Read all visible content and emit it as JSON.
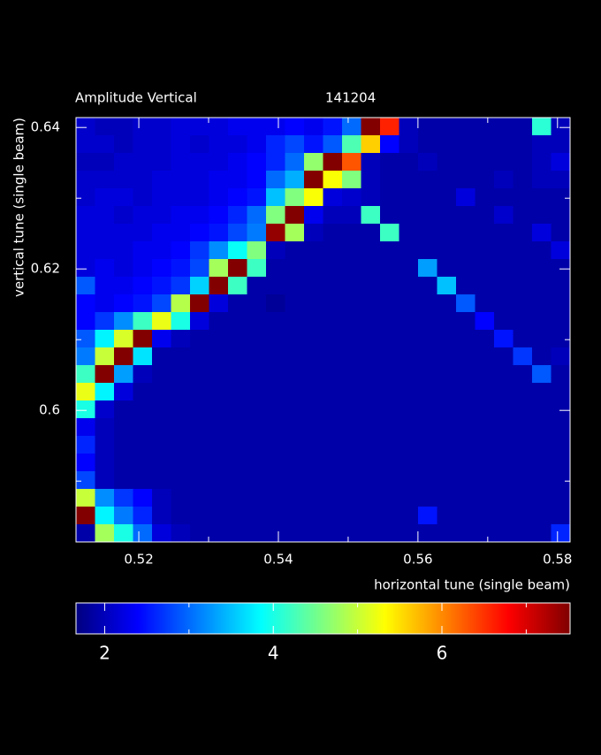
{
  "chart_data": {
    "type": "heatmap",
    "title": "Amplitude Vertical",
    "subtitle": "141204",
    "x_label": "horizontal tune (single beam)",
    "y_label": "vertical tune (single beam)",
    "xlim": [
      0.511,
      0.5818
    ],
    "ylim": [
      0.5814,
      0.6414
    ],
    "xticks": [
      0.52,
      0.54,
      0.56,
      0.58
    ],
    "xminor": [
      0.53,
      0.55,
      0.57
    ],
    "yticks": [
      0.6,
      0.62,
      0.64
    ],
    "yminor": [
      0.59,
      0.61,
      0.63
    ],
    "colormap": "jet",
    "zlim": [
      1.66,
      7.52
    ],
    "zticks": [
      2,
      4,
      6
    ],
    "zminor": [
      3,
      5,
      7
    ],
    "z": [
      [
        2.1,
        2.0,
        2.0,
        2.1,
        2.1,
        2.2,
        2.2,
        2.2,
        2.3,
        2.3,
        2.3,
        2.4,
        2.3,
        2.5,
        3.0,
        7.5,
        6.6,
        2.0,
        1.9,
        1.9,
        1.9,
        1.9,
        1.9,
        1.9,
        4.1,
        2.0
      ],
      [
        2.1,
        2.1,
        2.0,
        2.1,
        2.1,
        2.2,
        2.1,
        2.2,
        2.2,
        2.3,
        2.6,
        2.8,
        2.5,
        2.9,
        4.3,
        5.6,
        2.4,
        2.0,
        1.9,
        1.9,
        1.9,
        1.9,
        1.9,
        1.9,
        2.0,
        2.0
      ],
      [
        2.0,
        2.0,
        2.1,
        2.1,
        2.1,
        2.2,
        2.2,
        2.2,
        2.3,
        2.4,
        2.6,
        3.0,
        4.7,
        7.5,
        6.3,
        2.0,
        1.9,
        1.9,
        2.0,
        1.9,
        1.9,
        1.9,
        1.9,
        1.9,
        2.0,
        2.2
      ],
      [
        2.1,
        2.1,
        2.1,
        2.1,
        2.2,
        2.2,
        2.2,
        2.3,
        2.3,
        2.4,
        3.0,
        3.4,
        7.5,
        5.3,
        4.6,
        2.0,
        1.9,
        1.9,
        1.9,
        1.9,
        1.9,
        1.9,
        2.0,
        1.9,
        2.0,
        2.0
      ],
      [
        2.1,
        2.2,
        2.2,
        2.1,
        2.2,
        2.2,
        2.2,
        2.3,
        2.4,
        2.5,
        3.5,
        4.6,
        5.3,
        2.2,
        2.1,
        2.0,
        1.9,
        1.9,
        1.9,
        1.9,
        2.2,
        1.9,
        1.9,
        1.9,
        1.9,
        1.9
      ],
      [
        2.2,
        2.2,
        2.1,
        2.2,
        2.2,
        2.3,
        2.3,
        2.4,
        2.6,
        3.0,
        4.6,
        7.5,
        2.3,
        2.0,
        2.0,
        4.2,
        1.9,
        1.9,
        1.9,
        1.9,
        1.9,
        1.9,
        2.1,
        1.9,
        1.9,
        1.9
      ],
      [
        2.2,
        2.2,
        2.2,
        2.2,
        2.3,
        2.3,
        2.4,
        2.5,
        2.8,
        3.1,
        7.4,
        4.8,
        2.0,
        1.9,
        1.9,
        1.9,
        4.2,
        1.9,
        1.9,
        1.9,
        1.9,
        1.9,
        1.9,
        1.9,
        2.2,
        1.9
      ],
      [
        2.2,
        2.2,
        2.2,
        2.3,
        2.3,
        2.4,
        2.7,
        3.2,
        3.9,
        4.6,
        2.0,
        1.9,
        1.9,
        1.9,
        1.9,
        1.9,
        1.9,
        1.9,
        1.9,
        1.9,
        1.9,
        1.9,
        1.9,
        1.9,
        1.9,
        2.2
      ],
      [
        2.2,
        2.3,
        2.2,
        2.3,
        2.4,
        2.5,
        2.8,
        4.8,
        7.5,
        4.2,
        1.9,
        1.9,
        1.9,
        1.9,
        1.9,
        1.9,
        1.9,
        1.9,
        3.3,
        1.9,
        1.9,
        1.9,
        1.9,
        1.9,
        1.9,
        1.9
      ],
      [
        2.9,
        2.3,
        2.3,
        2.4,
        2.5,
        2.7,
        3.6,
        7.5,
        4.2,
        1.9,
        1.9,
        1.9,
        1.9,
        1.9,
        1.9,
        1.9,
        1.9,
        1.9,
        1.9,
        3.5,
        1.9,
        1.9,
        1.9,
        1.9,
        1.9,
        1.9
      ],
      [
        2.4,
        2.3,
        2.4,
        2.5,
        2.8,
        4.9,
        7.5,
        2.2,
        1.9,
        1.9,
        1.8,
        1.9,
        1.9,
        1.9,
        1.9,
        1.9,
        1.9,
        1.9,
        1.9,
        1.9,
        2.9,
        1.9,
        1.9,
        1.9,
        1.9,
        1.9
      ],
      [
        2.4,
        2.7,
        3.2,
        4.2,
        5.2,
        4.0,
        2.2,
        1.9,
        1.9,
        1.9,
        1.9,
        1.9,
        1.9,
        1.9,
        1.9,
        1.9,
        1.9,
        1.9,
        1.9,
        1.9,
        1.9,
        2.4,
        1.9,
        1.9,
        1.9,
        1.9
      ],
      [
        2.9,
        3.8,
        5.1,
        7.5,
        2.3,
        2.0,
        1.9,
        1.9,
        1.9,
        1.9,
        1.9,
        1.9,
        1.9,
        1.9,
        1.9,
        1.9,
        1.9,
        1.9,
        1.9,
        1.9,
        1.9,
        1.9,
        2.5,
        1.9,
        1.9,
        1.9
      ],
      [
        3.1,
        5.0,
        7.5,
        3.7,
        1.9,
        1.9,
        1.9,
        1.9,
        1.9,
        1.9,
        1.9,
        1.9,
        1.9,
        1.9,
        1.9,
        1.9,
        1.9,
        1.9,
        1.9,
        1.9,
        1.9,
        1.9,
        1.9,
        2.7,
        1.9,
        2.0
      ],
      [
        4.2,
        7.5,
        3.3,
        2.0,
        1.9,
        1.9,
        1.9,
        1.9,
        1.9,
        1.9,
        1.9,
        1.9,
        1.9,
        1.9,
        1.9,
        1.9,
        1.9,
        1.9,
        1.9,
        1.9,
        1.9,
        1.9,
        1.9,
        1.9,
        2.9,
        1.9
      ],
      [
        5.2,
        3.8,
        2.2,
        1.9,
        1.9,
        1.9,
        1.9,
        1.9,
        1.9,
        1.9,
        1.9,
        1.9,
        1.9,
        1.9,
        1.9,
        1.9,
        1.9,
        1.9,
        1.9,
        1.9,
        1.9,
        1.9,
        1.9,
        1.9,
        1.9,
        1.9
      ],
      [
        4.0,
        2.1,
        1.9,
        1.9,
        1.9,
        1.9,
        1.9,
        1.9,
        1.9,
        1.9,
        1.9,
        1.9,
        1.9,
        1.9,
        1.9,
        1.9,
        1.9,
        1.9,
        1.9,
        1.9,
        1.9,
        1.9,
        1.9,
        1.9,
        1.9,
        1.9
      ],
      [
        2.3,
        2.0,
        1.9,
        1.9,
        1.9,
        1.9,
        1.9,
        1.9,
        1.9,
        1.9,
        1.9,
        1.9,
        1.9,
        1.9,
        1.9,
        1.9,
        1.9,
        1.9,
        1.9,
        1.9,
        1.9,
        1.9,
        1.9,
        1.9,
        1.9,
        1.9
      ],
      [
        2.6,
        2.0,
        1.9,
        1.9,
        1.9,
        1.9,
        1.9,
        1.9,
        1.9,
        1.9,
        1.9,
        1.9,
        1.9,
        1.9,
        1.9,
        1.9,
        1.9,
        1.9,
        1.9,
        1.9,
        1.9,
        1.9,
        1.9,
        1.9,
        1.9,
        1.9
      ],
      [
        2.4,
        2.0,
        1.9,
        1.9,
        1.9,
        1.9,
        1.9,
        1.9,
        1.9,
        1.9,
        1.9,
        1.9,
        1.9,
        1.9,
        1.9,
        1.9,
        1.9,
        1.9,
        1.9,
        1.9,
        1.9,
        1.9,
        1.9,
        1.9,
        1.9,
        1.9
      ],
      [
        2.8,
        2.0,
        1.9,
        1.9,
        1.9,
        1.9,
        1.9,
        1.9,
        1.9,
        1.9,
        1.9,
        1.9,
        1.9,
        1.9,
        1.9,
        1.9,
        1.9,
        1.9,
        1.9,
        1.9,
        1.9,
        1.9,
        1.9,
        1.9,
        1.9,
        1.9
      ],
      [
        5.0,
        3.2,
        2.7,
        2.4,
        2.0,
        1.9,
        1.9,
        1.9,
        1.9,
        1.9,
        1.9,
        1.9,
        1.9,
        1.9,
        1.9,
        1.9,
        1.9,
        1.9,
        1.9,
        1.9,
        1.9,
        1.9,
        1.9,
        1.9,
        1.9,
        1.9
      ],
      [
        7.5,
        3.8,
        3.1,
        2.6,
        2.0,
        1.9,
        1.9,
        1.9,
        1.9,
        1.9,
        1.9,
        1.9,
        1.9,
        1.9,
        1.9,
        1.9,
        1.9,
        1.9,
        2.5,
        1.9,
        1.9,
        1.9,
        1.9,
        1.9,
        1.9,
        1.9
      ],
      [
        1.9,
        4.8,
        4.0,
        3.0,
        2.2,
        2.0,
        1.9,
        1.9,
        1.9,
        1.9,
        1.9,
        1.9,
        1.9,
        1.9,
        1.9,
        1.9,
        1.9,
        1.9,
        1.9,
        1.9,
        1.9,
        1.9,
        1.9,
        1.9,
        1.9,
        2.6
      ]
    ]
  }
}
